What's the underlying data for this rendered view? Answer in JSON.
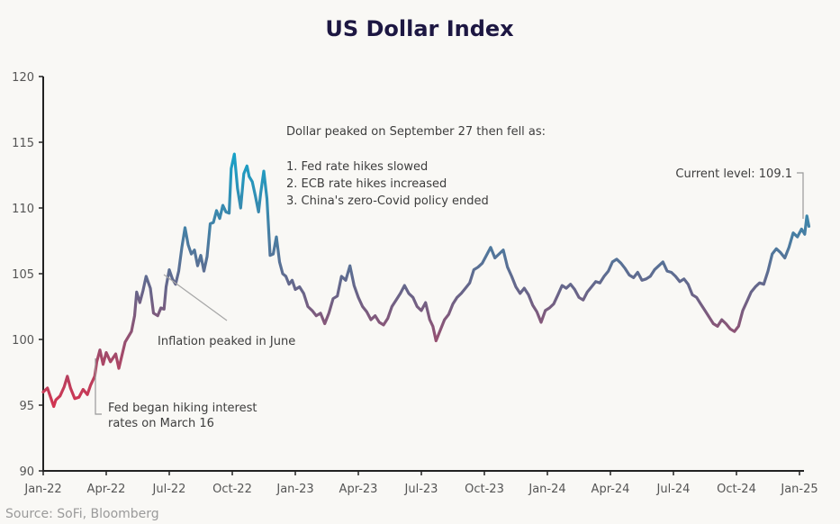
{
  "chart_data": {
    "type": "line",
    "title": "US Dollar Index",
    "xlabel": "",
    "ylabel": "",
    "ylim": [
      90,
      120
    ],
    "yticks": [
      90,
      95,
      100,
      105,
      110,
      115,
      120
    ],
    "xlim": [
      "2022-01-01",
      "2025-01-15"
    ],
    "xtick_labels": [
      "Jan-22",
      "Apr-22",
      "Jul-22",
      "Oct-22",
      "Jan-23",
      "Apr-23",
      "Jul-23",
      "Oct-23",
      "Jan-24",
      "Apr-24",
      "Jul-24",
      "Oct-24",
      "Jan-25"
    ],
    "xtick_months": [
      0,
      3,
      6,
      9,
      12,
      15,
      18,
      21,
      24,
      27,
      30,
      33,
      36
    ],
    "grid": false,
    "legend": "none",
    "color_scale": {
      "low": "#d6334f",
      "mid": "#6a6488",
      "high": "#17a2c8"
    },
    "series": [
      {
        "name": "US Dollar Index",
        "x_months": [
          0,
          0.2,
          0.35,
          0.5,
          0.6,
          0.8,
          1.0,
          1.15,
          1.3,
          1.5,
          1.7,
          1.9,
          2.1,
          2.25,
          2.45,
          2.55,
          2.7,
          2.85,
          3.0,
          3.2,
          3.45,
          3.6,
          3.75,
          3.9,
          4.05,
          4.2,
          4.35,
          4.45,
          4.6,
          4.75,
          4.9,
          5.1,
          5.25,
          5.45,
          5.6,
          5.75,
          5.85,
          6.0,
          6.15,
          6.3,
          6.45,
          6.6,
          6.75,
          6.9,
          7.05,
          7.2,
          7.35,
          7.5,
          7.65,
          7.8,
          7.95,
          8.1,
          8.25,
          8.4,
          8.55,
          8.7,
          8.85,
          8.95,
          9.1,
          9.25,
          9.4,
          9.55,
          9.7,
          9.8,
          9.95,
          10.1,
          10.25,
          10.35,
          10.5,
          10.65,
          10.8,
          10.95,
          11.1,
          11.25,
          11.4,
          11.55,
          11.7,
          11.85,
          12.0,
          12.2,
          12.4,
          12.6,
          12.8,
          13.0,
          13.2,
          13.4,
          13.6,
          13.8,
          14.0,
          14.2,
          14.4,
          14.6,
          14.8,
          15.0,
          15.2,
          15.4,
          15.6,
          15.8,
          16.0,
          16.2,
          16.4,
          16.6,
          16.8,
          17.0,
          17.2,
          17.4,
          17.6,
          17.8,
          18.0,
          18.2,
          18.4,
          18.55,
          18.7,
          18.9,
          19.1,
          19.3,
          19.5,
          19.7,
          19.9,
          20.1,
          20.3,
          20.5,
          20.7,
          20.9,
          21.1,
          21.3,
          21.5,
          21.7,
          21.9,
          22.1,
          22.3,
          22.5,
          22.7,
          22.9,
          23.1,
          23.3,
          23.5,
          23.7,
          23.9,
          24.1,
          24.3,
          24.5,
          24.7,
          24.9,
          25.1,
          25.3,
          25.5,
          25.7,
          25.9,
          26.1,
          26.3,
          26.5,
          26.7,
          26.9,
          27.1,
          27.3,
          27.5,
          27.7,
          27.9,
          28.1,
          28.3,
          28.5,
          28.7,
          28.9,
          29.1,
          29.3,
          29.5,
          29.7,
          29.9,
          30.1,
          30.3,
          30.5,
          30.7,
          30.9,
          31.1,
          31.3,
          31.5,
          31.7,
          31.9,
          32.1,
          32.3,
          32.5,
          32.7,
          32.9,
          33.1,
          33.3,
          33.5,
          33.7,
          33.9,
          34.1,
          34.3,
          34.5,
          34.7,
          34.9,
          35.1,
          35.3,
          35.5,
          35.7,
          35.9,
          36.1,
          36.25,
          36.35,
          36.45
        ],
        "values": [
          96.0,
          96.3,
          95.6,
          94.9,
          95.4,
          95.7,
          96.4,
          97.2,
          96.3,
          95.5,
          95.6,
          96.2,
          95.8,
          96.5,
          97.2,
          98.3,
          99.2,
          98.1,
          99.0,
          98.3,
          98.9,
          97.8,
          98.8,
          99.8,
          100.2,
          100.6,
          101.8,
          103.6,
          102.8,
          103.7,
          104.8,
          103.9,
          102.0,
          101.8,
          102.4,
          102.3,
          104.0,
          105.3,
          104.6,
          104.2,
          105.2,
          107.0,
          108.5,
          107.2,
          106.5,
          106.8,
          105.6,
          106.4,
          105.2,
          106.3,
          108.8,
          108.9,
          109.8,
          109.2,
          110.2,
          109.7,
          109.6,
          113.0,
          114.1,
          111.5,
          110.0,
          112.6,
          113.2,
          112.4,
          112.0,
          110.9,
          109.7,
          111.1,
          112.8,
          110.7,
          106.4,
          106.5,
          107.8,
          105.9,
          105.0,
          104.8,
          104.2,
          104.5,
          103.8,
          104.0,
          103.5,
          102.5,
          102.2,
          101.8,
          102.0,
          101.2,
          102.0,
          103.1,
          103.3,
          104.8,
          104.5,
          105.6,
          104.1,
          103.2,
          102.5,
          102.1,
          101.5,
          101.8,
          101.3,
          101.1,
          101.6,
          102.5,
          103.0,
          103.5,
          104.1,
          103.5,
          103.2,
          102.5,
          102.2,
          102.8,
          101.5,
          101.0,
          99.9,
          100.7,
          101.5,
          101.9,
          102.7,
          103.2,
          103.5,
          103.9,
          104.3,
          105.3,
          105.5,
          105.8,
          106.4,
          107.0,
          106.2,
          106.5,
          106.8,
          105.5,
          104.8,
          104.0,
          103.5,
          103.9,
          103.4,
          102.6,
          102.1,
          101.3,
          102.2,
          102.4,
          102.7,
          103.4,
          104.1,
          103.9,
          104.2,
          103.8,
          103.2,
          103.0,
          103.6,
          104.0,
          104.4,
          104.3,
          104.8,
          105.2,
          105.9,
          106.1,
          105.8,
          105.4,
          104.9,
          104.7,
          105.1,
          104.5,
          104.6,
          104.8,
          105.3,
          105.6,
          105.9,
          105.2,
          105.1,
          104.8,
          104.4,
          104.6,
          104.2,
          103.4,
          103.2,
          102.7,
          102.2,
          101.7,
          101.2,
          101.0,
          101.5,
          101.2,
          100.8,
          100.6,
          101.0,
          102.2,
          102.9,
          103.6,
          104.0,
          104.3,
          104.2,
          105.2,
          106.5,
          106.9,
          106.6,
          106.2,
          107.0,
          108.1,
          107.8,
          108.4,
          108.0,
          109.4,
          108.6,
          109.1
        ],
        "annotations": [
          {
            "text_lines": [
              "Dollar peaked on September 27 then fell as:",
              "",
              "1. Fed rate hikes slowed",
              "2. ECB rate hikes increased",
              "3. China's zero-Covid policy ended"
            ],
            "target_month": 8.9,
            "target_value": 114.1
          },
          {
            "text_lines": [
              "Current level: 109.1"
            ],
            "target_month": 36.45,
            "target_value": 109.1
          },
          {
            "text_lines": [
              "Inflation peaked in June"
            ],
            "target_month": 5.45,
            "target_value": 105.0
          },
          {
            "text_lines": [
              "Fed began hiking interest",
              "rates on March 16"
            ],
            "target_month": 2.5,
            "target_value": 98.3
          }
        ]
      }
    ]
  },
  "source": "Source: SoFi, Bloomberg"
}
